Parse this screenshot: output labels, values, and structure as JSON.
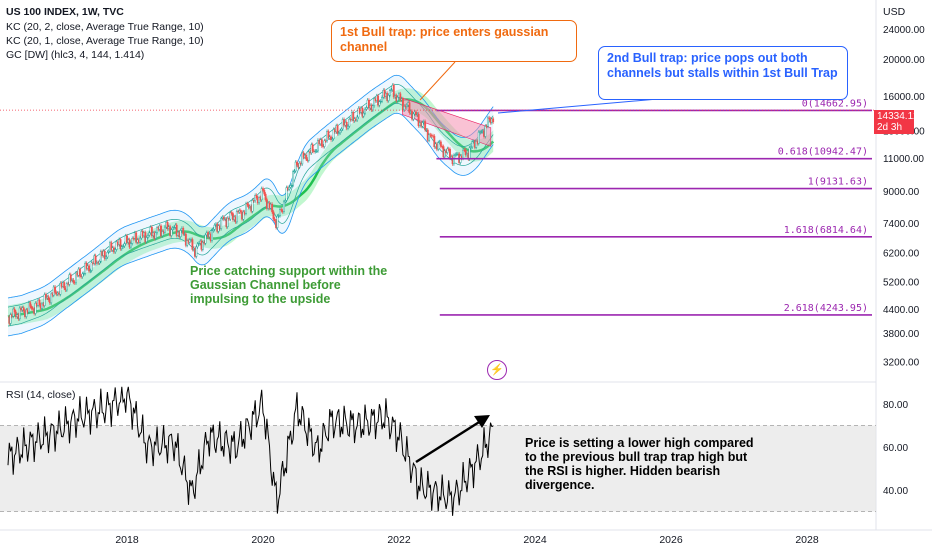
{
  "legend": {
    "symbol": "US 100 INDEX, 1W, TVC",
    "kc1": "KC (20, 2, close, Average True Range, 10)",
    "kc2": "KC (20, 1, close, Average True Range, 10)",
    "gc": "GC [DW] (hlc3, 4, 144, 1.414)"
  },
  "currency": "USD",
  "price_badge": {
    "price": "14334.12",
    "countdown": "2d 3h"
  },
  "rsi_label": "RSI (14, close)",
  "annotations": {
    "bull_trap_1": "1st Bull trap: price enters gaussian channel",
    "bull_trap_2": "2nd Bull trap: price pops out both channels but stalls within 1st Bull Trap",
    "support": "Price catching support within the Gaussian Channel before impulsing to the upside",
    "divergence": "Price is setting a lower high compared to the previous bull trap trap high but the RSI is higher.  Hidden bearish divergence."
  },
  "colors": {
    "fib": "#9c27b0",
    "gaussian_fill": "#8ef0a8",
    "gaussian_line": "#20c050",
    "kc_outer": "#2196f3",
    "kc_inner": "#26a69a",
    "trap_zone": "#f48fb1",
    "current_price": "#f23645",
    "annotation_orange": "#f06a10",
    "annotation_blue": "#2962ff",
    "annotation_green": "#3d9b35"
  },
  "chart_data": [
    {
      "type": "line",
      "title": "US 100 INDEX, 1W, TVC",
      "scale": "log",
      "y_ticks": [
        "24000.00",
        "20000.00",
        "16000.00",
        "13000.00",
        "11000.00",
        "9000.00",
        "7400.00",
        "6200.00",
        "5200.00",
        "4400.00",
        "3800.00",
        "3200.00"
      ],
      "x_ticks": [
        "2018",
        "2020",
        "2022",
        "2024",
        "2026",
        "2028"
      ],
      "series": [
        {
          "x": [
            2016.25,
            2016.7,
            2017.0,
            2017.4,
            2017.8,
            2018.1,
            2018.6,
            2018.8,
            2019.0,
            2019.4,
            2019.7,
            2020.0,
            2020.2,
            2020.5,
            2020.8,
            2021.1,
            2021.5,
            2021.9,
            2022.0,
            2022.3,
            2022.5,
            2022.8,
            2023.0,
            2023.2,
            2023.4
          ],
          "values": [
            4200,
            4500,
            4950,
            5600,
            6400,
            6700,
            7200,
            7000,
            6300,
            7500,
            7900,
            8900,
            7400,
            10600,
            11800,
            13000,
            14800,
            16500,
            15700,
            13800,
            12200,
            11000,
            11300,
            12700,
            14334
          ]
        }
      ],
      "fib_levels": [
        {
          "label": "0(14662.95)",
          "value": 14662.95
        },
        {
          "label": "0.618(10942.47)",
          "value": 10942.47
        },
        {
          "label": "1(9131.63)",
          "value": 9131.63
        },
        {
          "label": "1.618(6814.64)",
          "value": 6814.64
        },
        {
          "label": "2.618(4243.95)",
          "value": 4243.95
        }
      ],
      "current_price": 14334.12
    },
    {
      "type": "line",
      "title": "RSI (14, close)",
      "y_ticks": [
        "80.00",
        "60.00",
        "40.00"
      ],
      "ylim": [
        30,
        90
      ],
      "series": [
        {
          "x": [
            2016.25,
            2016.6,
            2017.0,
            2017.3,
            2017.7,
            2018.0,
            2018.3,
            2018.7,
            2018.95,
            2019.2,
            2019.6,
            2020.0,
            2020.2,
            2020.5,
            2020.8,
            2021.0,
            2021.4,
            2021.8,
            2022.0,
            2022.3,
            2022.6,
            2022.8,
            2023.0,
            2023.2,
            2023.4
          ],
          "values": [
            55,
            62,
            68,
            74,
            78,
            84,
            60,
            62,
            38,
            65,
            60,
            80,
            34,
            78,
            58,
            72,
            70,
            74,
            65,
            42,
            38,
            36,
            46,
            56,
            69
          ]
        }
      ]
    }
  ]
}
